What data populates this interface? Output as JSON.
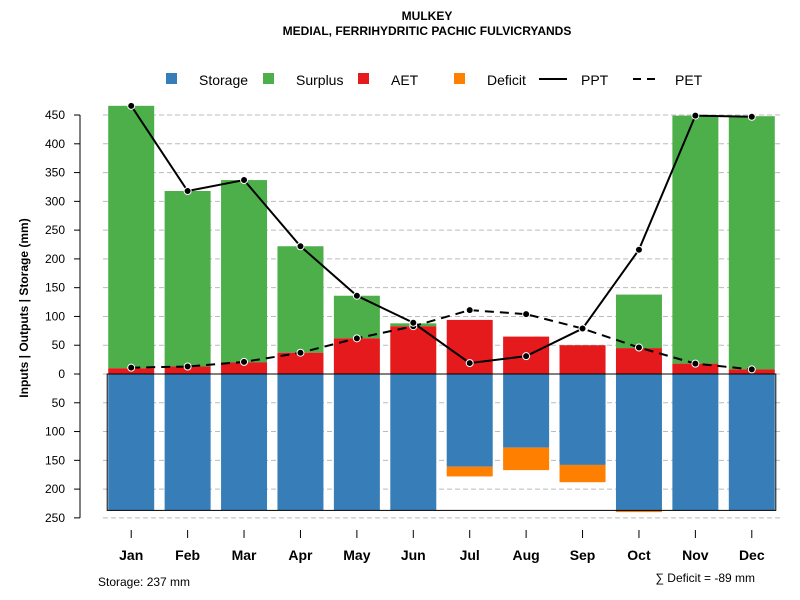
{
  "chart_data": {
    "type": "bar",
    "title": "MULKEY",
    "subtitle": "MEDIAL, FERRIHYDRITIC PACHIC FULVICRYANDS",
    "ylabel": "Inputs | Outputs | Storage    (mm)",
    "categories": [
      "Jan",
      "Feb",
      "Mar",
      "Apr",
      "May",
      "Jun",
      "Jul",
      "Aug",
      "Sep",
      "Oct",
      "Nov",
      "Dec"
    ],
    "ylim": [
      -250,
      480
    ],
    "yticks": [
      -250,
      -200,
      -150,
      -100,
      -50,
      0,
      50,
      100,
      150,
      200,
      250,
      300,
      350,
      400,
      450
    ],
    "ytick_labels": [
      "250",
      "200",
      "150",
      "100",
      "50",
      "0",
      "50",
      "100",
      "150",
      "200",
      "250",
      "300",
      "350",
      "400",
      "450"
    ],
    "storage_capacity": 237,
    "legend": [
      {
        "name": "Storage",
        "kind": "box",
        "color": "#377eb8"
      },
      {
        "name": "Surplus",
        "kind": "box",
        "color": "#4daf4a"
      },
      {
        "name": "AET",
        "kind": "box",
        "color": "#e41a1c"
      },
      {
        "name": "Deficit",
        "kind": "box",
        "color": "#ff7f00"
      },
      {
        "name": "PPT",
        "kind": "solid"
      },
      {
        "name": "PET",
        "kind": "dashed"
      }
    ],
    "series": [
      {
        "name": "AET",
        "color": "#e41a1c",
        "values": [
          10,
          13,
          20,
          37,
          62,
          83,
          94,
          65,
          50,
          45,
          18,
          8
        ]
      },
      {
        "name": "Surplus",
        "color": "#4daf4a",
        "values": [
          456,
          305,
          317,
          185,
          74,
          5,
          0,
          0,
          0,
          93,
          431,
          440
        ]
      },
      {
        "name": "Storage",
        "color": "#377eb8",
        "values": [
          237,
          237,
          237,
          237,
          237,
          237,
          161,
          128,
          158,
          237,
          237,
          237
        ]
      },
      {
        "name": "Deficit",
        "color": "#ff7f00",
        "values": [
          0,
          0,
          0,
          0,
          0,
          0,
          17,
          39,
          30,
          3,
          0,
          0
        ]
      },
      {
        "name": "PPT",
        "color": "#000000",
        "values": [
          466,
          318,
          337,
          222,
          136,
          89,
          19,
          31,
          79,
          216,
          449,
          447
        ]
      },
      {
        "name": "PET",
        "color": "#000000",
        "values": [
          11,
          13,
          21,
          37,
          62,
          83,
          111,
          104,
          79,
          46,
          18,
          8
        ]
      }
    ],
    "storage_note": "Storage: 237 mm",
    "deficit_note": "∑ Deficit = -89 mm"
  }
}
